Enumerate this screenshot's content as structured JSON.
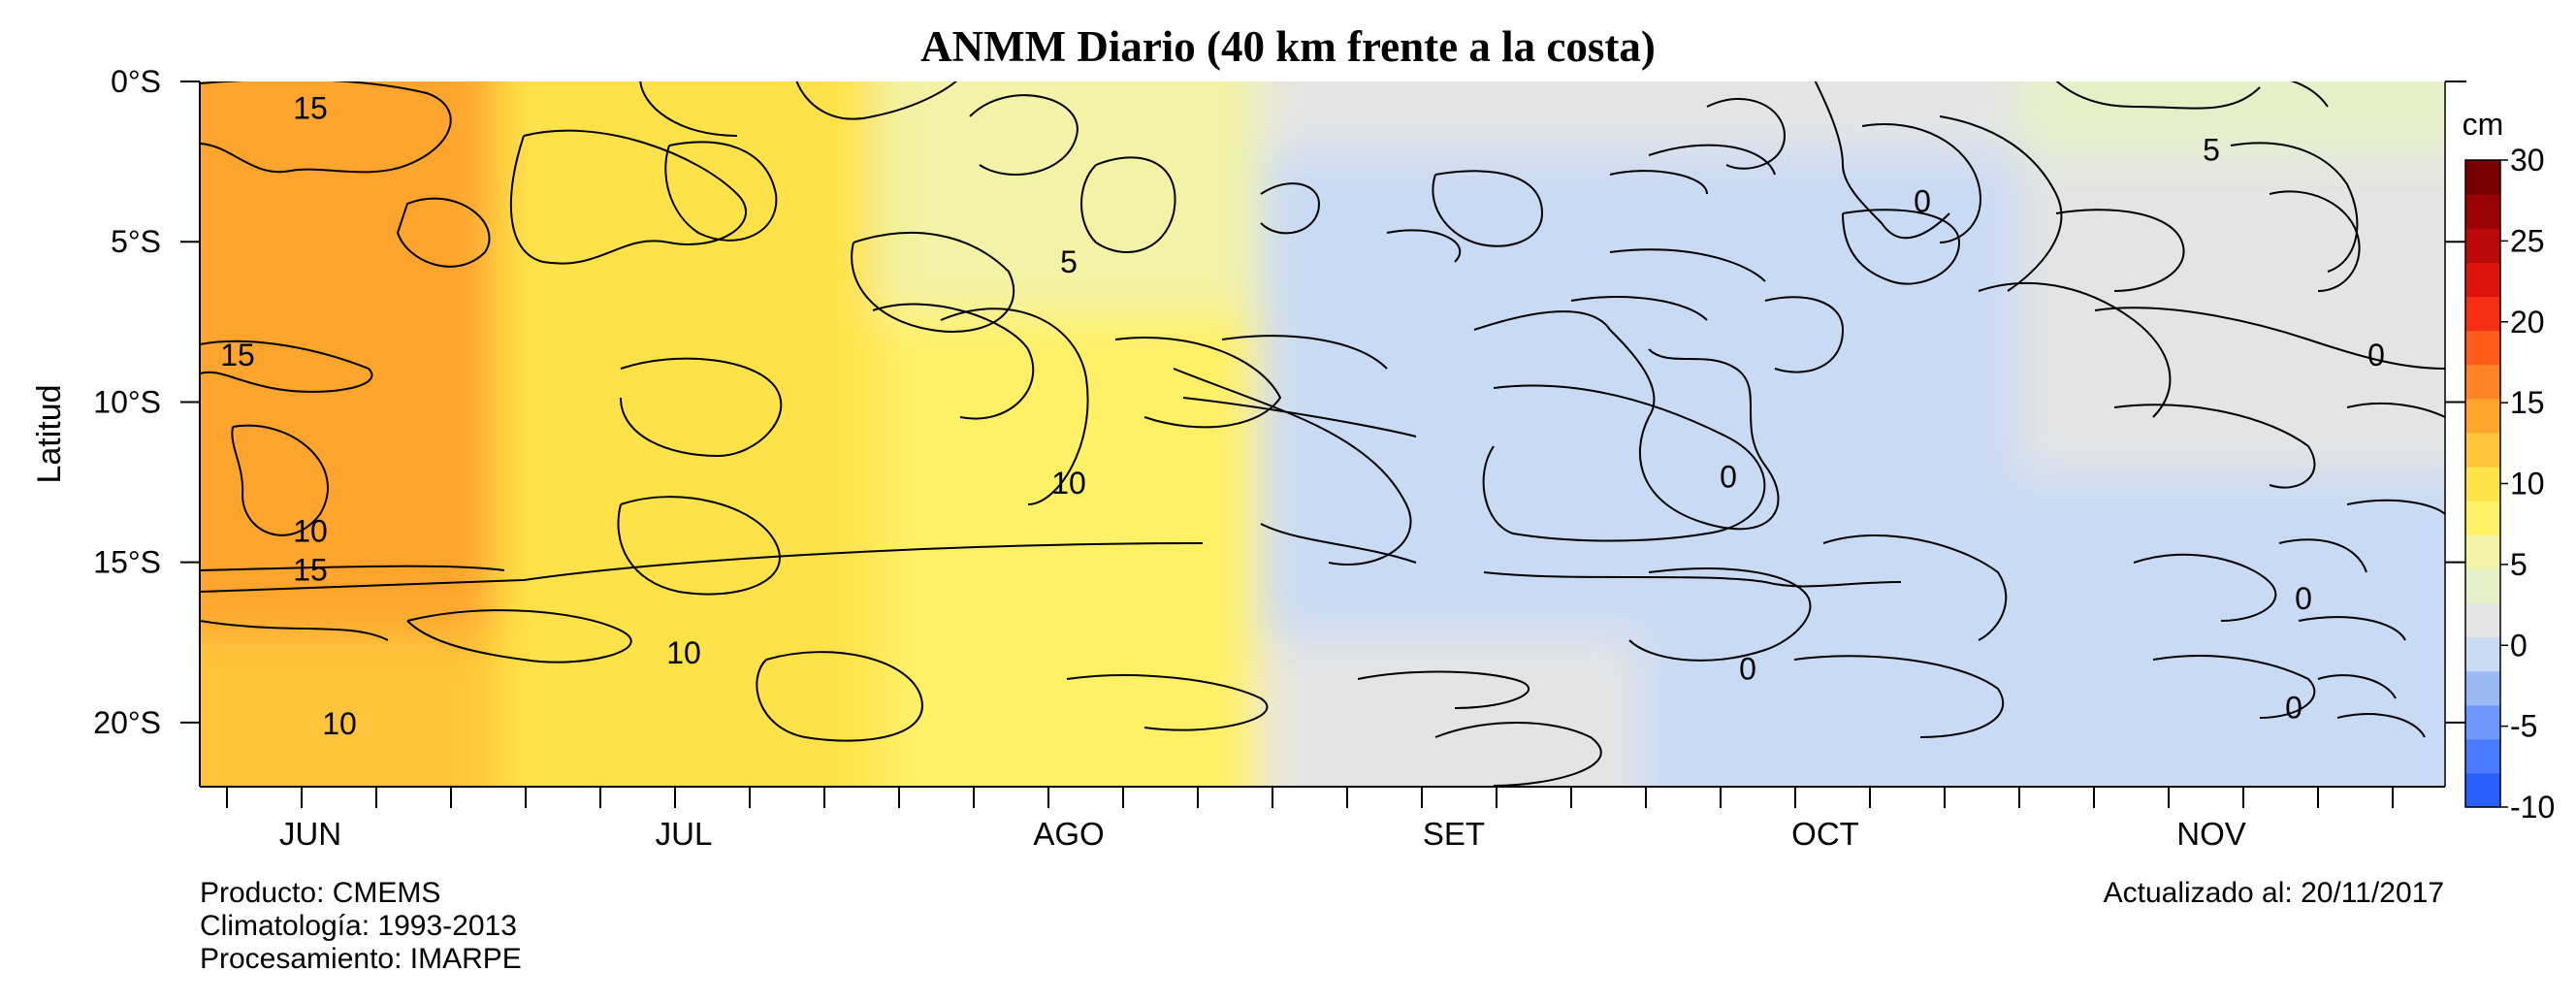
{
  "chart_data": {
    "type": "heatmap",
    "title": "ANMM Diario (40 km frente a la costa)",
    "ylabel": "Latitud",
    "xlabel": "",
    "x_tick_labels": [
      "JUN",
      "JUL",
      "AGO",
      "SET",
      "OCT",
      "NOV"
    ],
    "y_tick_labels": [
      "0°S",
      "5°S",
      "10°S",
      "15°S",
      "20°S"
    ],
    "y_tick_values": [
      0,
      5,
      10,
      15,
      20
    ],
    "ylim": [
      0,
      22
    ],
    "x_days_per_tick": 6,
    "colorbar": {
      "unit": "cm",
      "ticks": [
        30,
        25,
        20,
        15,
        10,
        5,
        0,
        -5,
        -10
      ],
      "range": [
        -10,
        30
      ],
      "colors": [
        "#2a5fff",
        "#4a7bff",
        "#6e97ff",
        "#9bbaf4",
        "#c9daf4",
        "#e4e4e4",
        "#e6f0c8",
        "#f2f3a6",
        "#fff066",
        "#ffe24a",
        "#ffc43a",
        "#ffa52e",
        "#ff8224",
        "#ff5a1a",
        "#f52e14",
        "#dd140e",
        "#bb0808",
        "#9a0404",
        "#7a0000"
      ]
    },
    "contour_labels": [
      {
        "text": "15",
        "lat": 0.8,
        "month": "JUN"
      },
      {
        "text": "15",
        "lat": 8.5,
        "month": "JUN"
      },
      {
        "text": "15",
        "lat": 15.2,
        "month": "JUN"
      },
      {
        "text": "10",
        "lat": 14.0,
        "month": "JUN"
      },
      {
        "text": "10",
        "lat": 20.0,
        "month": "JUN"
      },
      {
        "text": "10",
        "lat": 12.5,
        "month": "AGO"
      },
      {
        "text": "10",
        "lat": 17.8,
        "month": "JUL"
      },
      {
        "text": "5",
        "lat": 5.6,
        "month": "AGO"
      },
      {
        "text": "0",
        "lat": 3.7,
        "month": "OCT"
      },
      {
        "text": "0",
        "lat": 12.3,
        "month": "OCT"
      },
      {
        "text": "0",
        "lat": 18.3,
        "month": "OCT"
      },
      {
        "text": "5",
        "lat": 2.1,
        "month": "NOV"
      },
      {
        "text": "0",
        "lat": 8.5,
        "month": "NOV"
      },
      {
        "text": "0",
        "lat": 16.1,
        "month": "NOV"
      },
      {
        "text": "0",
        "lat": 19.5,
        "month": "NOV"
      }
    ],
    "series": [
      {
        "lat": 0,
        "anomaly_by_month": {
          "JUN": 15,
          "JUL": 11,
          "AGO": 6,
          "SET": 1,
          "OCT": 2,
          "NOV": 4
        }
      },
      {
        "lat": 5,
        "anomaly_by_month": {
          "JUN": 14,
          "JUL": 10,
          "AGO": 6,
          "SET": 0,
          "OCT": 0,
          "NOV": 1
        }
      },
      {
        "lat": 10,
        "anomaly_by_month": {
          "JUN": 15,
          "JUL": 11,
          "AGO": 8,
          "SET": 0,
          "OCT": 0,
          "NOV": 1
        }
      },
      {
        "lat": 15,
        "anomaly_by_month": {
          "JUN": 15,
          "JUL": 11,
          "AGO": 7,
          "SET": 0,
          "OCT": -1,
          "NOV": 0
        }
      },
      {
        "lat": 20,
        "anomaly_by_month": {
          "JUN": 12,
          "JUL": 10,
          "AGO": 8,
          "SET": 1,
          "OCT": 0,
          "NOV": 0
        }
      }
    ]
  },
  "footer": {
    "producto": "Producto: CMEMS",
    "climatologia": "Climatología: 1993-2013",
    "procesamiento": "Procesamiento: IMARPE",
    "actualizado": "Actualizado al: 20/11/2017"
  }
}
